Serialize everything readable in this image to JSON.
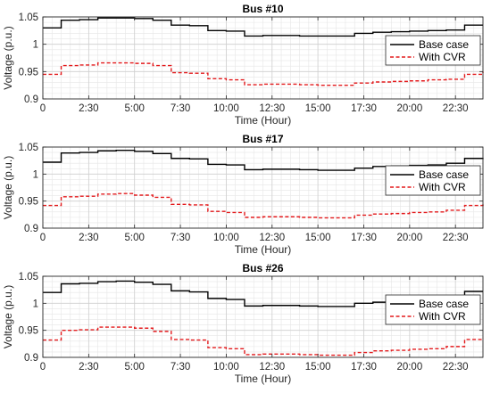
{
  "chart_data": [
    {
      "type": "line",
      "title": "Bus #10",
      "xlabel": "Time (Hour)",
      "ylabel": "Voltage (p.u.)",
      "xlim": [
        0,
        24
      ],
      "ylim": [
        0.9,
        1.05
      ],
      "yticks": [
        0.9,
        0.95,
        1,
        1.05
      ],
      "ytick_labels": [
        "0.9",
        "0.95",
        "1",
        "1.05"
      ],
      "xticks": [
        0,
        2.5,
        5,
        7.5,
        10,
        12.5,
        15,
        17.5,
        20,
        22.5
      ],
      "xtick_labels": [
        "0",
        "2:30",
        "5:00",
        "7:30",
        "10:00",
        "12:30",
        "15:00",
        "17:30",
        "20:00",
        "22:30"
      ],
      "grid": true,
      "legend_position": "right",
      "series": [
        {
          "name": "Base case",
          "color": "#000000",
          "style": "solid",
          "x": [
            0,
            1,
            2,
            3,
            4,
            5,
            6,
            7,
            8,
            9,
            10,
            11,
            12,
            13,
            14,
            15,
            16,
            17,
            18,
            19,
            20,
            21,
            22,
            23,
            24
          ],
          "y": [
            1.03,
            1.044,
            1.045,
            1.048,
            1.048,
            1.047,
            1.044,
            1.035,
            1.034,
            1.025,
            1.024,
            1.015,
            1.016,
            1.016,
            1.015,
            1.015,
            1.015,
            1.02,
            1.022,
            1.023,
            1.024,
            1.025,
            1.026,
            1.035,
            1.035
          ]
        },
        {
          "name": "With CVR",
          "color": "#e31a1c",
          "style": "dashed",
          "x": [
            0,
            1,
            2,
            3,
            4,
            5,
            6,
            7,
            8,
            9,
            10,
            11,
            12,
            13,
            14,
            15,
            16,
            17,
            18,
            19,
            20,
            21,
            22,
            23,
            24
          ],
          "y": [
            0.945,
            0.961,
            0.962,
            0.966,
            0.966,
            0.965,
            0.961,
            0.948,
            0.947,
            0.937,
            0.935,
            0.926,
            0.927,
            0.927,
            0.926,
            0.925,
            0.925,
            0.929,
            0.931,
            0.932,
            0.933,
            0.935,
            0.936,
            0.945,
            0.95
          ]
        }
      ]
    },
    {
      "type": "line",
      "title": "Bus #17",
      "xlabel": "Time (Hour)",
      "ylabel": "Voltage (p.u.)",
      "xlim": [
        0,
        24
      ],
      "ylim": [
        0.9,
        1.05
      ],
      "yticks": [
        0.9,
        0.95,
        1,
        1.05
      ],
      "ytick_labels": [
        "0.9",
        "0.95",
        "1",
        "1.05"
      ],
      "xticks": [
        0,
        2.5,
        5,
        7.5,
        10,
        12.5,
        15,
        17.5,
        20,
        22.5
      ],
      "xtick_labels": [
        "0",
        "2:30",
        "5:00",
        "7:30",
        "10:00",
        "12:30",
        "15:00",
        "17:30",
        "20:00",
        "22:30"
      ],
      "grid": true,
      "legend_position": "right",
      "series": [
        {
          "name": "Base case",
          "color": "#000000",
          "style": "solid",
          "x": [
            0,
            1,
            2,
            3,
            4,
            5,
            6,
            7,
            8,
            9,
            10,
            11,
            12,
            13,
            14,
            15,
            16,
            17,
            18,
            19,
            20,
            21,
            22,
            23,
            24
          ],
          "y": [
            1.022,
            1.039,
            1.04,
            1.043,
            1.044,
            1.042,
            1.038,
            1.029,
            1.028,
            1.018,
            1.017,
            1.008,
            1.009,
            1.009,
            1.008,
            1.007,
            1.007,
            1.011,
            1.014,
            1.015,
            1.016,
            1.017,
            1.02,
            1.029,
            1.03
          ]
        },
        {
          "name": "With CVR",
          "color": "#e31a1c",
          "style": "dashed",
          "x": [
            0,
            1,
            2,
            3,
            4,
            5,
            6,
            7,
            8,
            9,
            10,
            11,
            12,
            13,
            14,
            15,
            16,
            17,
            18,
            19,
            20,
            21,
            22,
            23,
            24
          ],
          "y": [
            0.942,
            0.958,
            0.959,
            0.963,
            0.964,
            0.961,
            0.957,
            0.944,
            0.943,
            0.931,
            0.929,
            0.92,
            0.921,
            0.921,
            0.92,
            0.919,
            0.919,
            0.924,
            0.926,
            0.927,
            0.929,
            0.93,
            0.933,
            0.942,
            0.945
          ]
        }
      ]
    },
    {
      "type": "line",
      "title": "Bus #26",
      "xlabel": "Time (Hour)",
      "ylabel": "Voltage (p.u.)",
      "xlim": [
        0,
        24
      ],
      "ylim": [
        0.9,
        1.05
      ],
      "yticks": [
        0.9,
        0.95,
        1,
        1.05
      ],
      "ytick_labels": [
        "0.9",
        "0.95",
        "1",
        "1.05"
      ],
      "xticks": [
        0,
        2.5,
        5,
        7.5,
        10,
        12.5,
        15,
        17.5,
        20,
        22.5
      ],
      "xtick_labels": [
        "0",
        "2:30",
        "5:00",
        "7:30",
        "10:00",
        "12:30",
        "15:00",
        "17:30",
        "20:00",
        "22:30"
      ],
      "grid": true,
      "legend_position": "right",
      "series": [
        {
          "name": "Base case",
          "color": "#000000",
          "style": "solid",
          "x": [
            0,
            1,
            2,
            3,
            4,
            5,
            6,
            7,
            8,
            9,
            10,
            11,
            12,
            13,
            14,
            15,
            16,
            17,
            18,
            19,
            20,
            21,
            22,
            23,
            24
          ],
          "y": [
            1.02,
            1.036,
            1.037,
            1.04,
            1.041,
            1.039,
            1.035,
            1.023,
            1.021,
            1.009,
            1.007,
            0.995,
            0.996,
            0.996,
            0.995,
            0.994,
            0.994,
            1.0,
            1.002,
            1.004,
            1.005,
            1.007,
            1.01,
            1.022,
            1.022
          ]
        },
        {
          "name": "With CVR",
          "color": "#e31a1c",
          "style": "dashed",
          "x": [
            0,
            1,
            2,
            3,
            4,
            5,
            6,
            7,
            8,
            9,
            10,
            11,
            12,
            13,
            14,
            15,
            16,
            17,
            18,
            19,
            20,
            21,
            22,
            23,
            24
          ],
          "y": [
            0.932,
            0.95,
            0.951,
            0.956,
            0.956,
            0.954,
            0.948,
            0.933,
            0.932,
            0.918,
            0.916,
            0.905,
            0.906,
            0.906,
            0.905,
            0.904,
            0.904,
            0.909,
            0.912,
            0.913,
            0.915,
            0.916,
            0.92,
            0.933,
            0.935
          ]
        }
      ]
    }
  ]
}
